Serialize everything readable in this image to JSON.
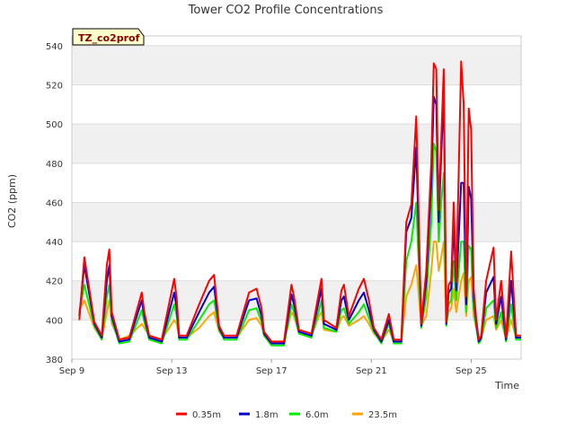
{
  "chart_data": {
    "type": "line",
    "title": "Tower CO2 Profile Concentrations",
    "xlabel": "Time",
    "ylabel": "CO2 (ppm)",
    "badge": "TZ_co2prof",
    "xlim": [
      9.0,
      27.0
    ],
    "ylim": [
      380,
      545
    ],
    "x_ticks": [
      {
        "value": 9,
        "label": "Sep 9"
      },
      {
        "value": 13,
        "label": "Sep 13"
      },
      {
        "value": 17,
        "label": "Sep 17"
      },
      {
        "value": 21,
        "label": "Sep 21"
      },
      {
        "value": 25,
        "label": "Sep 25"
      }
    ],
    "y_ticks": [
      380,
      400,
      420,
      440,
      460,
      480,
      500,
      520,
      540
    ],
    "grid": true,
    "legend_position": "bottom",
    "colors": {
      "0.35m": "#ff0000",
      "1.8m": "#0000cc",
      "6.0m": "#00ee00",
      "23.5m": "#ffa500",
      "band": "#f0f0f0",
      "grid": "#dddddd"
    },
    "series": [
      {
        "name": "0.35m",
        "color": "#ff0000",
        "x": [
          9.3,
          9.5,
          9.9,
          10.2,
          10.4,
          10.5,
          10.6,
          10.9,
          11.3,
          11.8,
          11.9,
          12.1,
          12.6,
          13.1,
          13.2,
          13.3,
          13.6,
          14.1,
          14.5,
          14.7,
          14.9,
          15.1,
          15.6,
          16.1,
          16.4,
          16.6,
          16.7,
          17.0,
          17.5,
          17.8,
          17.9,
          18.1,
          18.6,
          18.9,
          19.0,
          19.1,
          19.6,
          19.8,
          19.9,
          20.1,
          20.5,
          20.7,
          20.9,
          21.1,
          21.4,
          21.7,
          21.9,
          22.2,
          22.4,
          22.6,
          22.8,
          23.0,
          23.2,
          23.4,
          23.5,
          23.6,
          23.7,
          23.8,
          23.9,
          24.0,
          24.1,
          24.2,
          24.3,
          24.4,
          24.6,
          24.7,
          24.8,
          24.9,
          25.0,
          25.1,
          25.2,
          25.3,
          25.4,
          25.6,
          25.9,
          26.0,
          26.2,
          26.4,
          26.6,
          26.8,
          27.0
        ],
        "values": [
          400,
          432,
          399,
          392,
          428,
          436,
          404,
          390,
          391,
          414,
          404,
          392,
          390,
          421,
          411,
          392,
          392,
          408,
          420,
          423,
          397,
          392,
          392,
          414,
          416,
          406,
          394,
          389,
          389,
          418,
          412,
          395,
          393,
          414,
          421,
          400,
          396,
          415,
          418,
          402,
          416,
          421,
          410,
          396,
          390,
          403,
          390,
          390,
          450,
          459,
          504,
          398,
          425,
          480,
          531,
          528,
          456,
          492,
          528,
          399,
          418,
          420,
          460,
          419,
          532,
          510,
          412,
          508,
          497,
          416,
          401,
          390,
          392,
          420,
          437,
          400,
          420,
          391,
          435,
          392,
          392
        ]
      },
      {
        "name": "1.8m",
        "color": "#0000cc",
        "x": [
          9.3,
          9.5,
          9.9,
          10.2,
          10.4,
          10.5,
          10.6,
          10.9,
          11.3,
          11.8,
          11.9,
          12.1,
          12.6,
          13.1,
          13.2,
          13.3,
          13.6,
          14.1,
          14.5,
          14.7,
          14.9,
          15.1,
          15.6,
          16.1,
          16.4,
          16.6,
          16.7,
          17.0,
          17.5,
          17.8,
          17.9,
          18.1,
          18.6,
          18.9,
          19.0,
          19.1,
          19.6,
          19.8,
          19.9,
          20.1,
          20.5,
          20.7,
          20.9,
          21.1,
          21.4,
          21.7,
          21.9,
          22.2,
          22.4,
          22.6,
          22.8,
          23.0,
          23.2,
          23.4,
          23.5,
          23.6,
          23.7,
          23.8,
          23.9,
          24.0,
          24.1,
          24.2,
          24.3,
          24.4,
          24.6,
          24.7,
          24.8,
          24.9,
          25.0,
          25.1,
          25.2,
          25.3,
          25.4,
          25.6,
          25.9,
          26.0,
          26.2,
          26.4,
          26.6,
          26.8,
          27.0
        ],
        "values": [
          402,
          428,
          398,
          391,
          420,
          428,
          402,
          389,
          390,
          410,
          402,
          391,
          389,
          414,
          406,
          391,
          391,
          404,
          414,
          417,
          396,
          391,
          391,
          410,
          411,
          402,
          393,
          388,
          388,
          413,
          408,
          394,
          392,
          410,
          416,
          398,
          395,
          410,
          412,
          400,
          410,
          414,
          405,
          395,
          389,
          400,
          389,
          389,
          445,
          452,
          488,
          397,
          420,
          470,
          514,
          510,
          450,
          484,
          516,
          398,
          414,
          416,
          450,
          415,
          470,
          470,
          408,
          468,
          462,
          412,
          399,
          389,
          391,
          414,
          422,
          398,
          412,
          390,
          420,
          391,
          391
        ]
      },
      {
        "name": "6.0m",
        "color": "#00ee00",
        "x": [
          9.3,
          9.5,
          9.9,
          10.2,
          10.4,
          10.5,
          10.6,
          10.9,
          11.3,
          11.8,
          11.9,
          12.1,
          12.6,
          13.1,
          13.2,
          13.3,
          13.6,
          14.1,
          14.5,
          14.7,
          14.9,
          15.1,
          15.6,
          16.1,
          16.4,
          16.6,
          16.7,
          17.0,
          17.5,
          17.8,
          17.9,
          18.1,
          18.6,
          18.9,
          19.0,
          19.1,
          19.6,
          19.8,
          19.9,
          20.1,
          20.5,
          20.7,
          20.9,
          21.1,
          21.4,
          21.7,
          21.9,
          22.2,
          22.4,
          22.6,
          22.8,
          23.0,
          23.2,
          23.4,
          23.5,
          23.6,
          23.7,
          23.8,
          23.9,
          24.0,
          24.1,
          24.2,
          24.3,
          24.4,
          24.6,
          24.7,
          24.8,
          24.9,
          25.0,
          25.1,
          25.2,
          25.3,
          25.4,
          25.6,
          25.9,
          26.0,
          26.2,
          26.4,
          26.6,
          26.8,
          27.0
        ],
        "values": [
          404,
          418,
          397,
          390,
          412,
          418,
          400,
          388,
          389,
          405,
          399,
          390,
          388,
          408,
          402,
          390,
          390,
          400,
          408,
          410,
          395,
          390,
          390,
          405,
          406,
          399,
          392,
          387,
          387,
          408,
          404,
          393,
          391,
          405,
          410,
          396,
          394,
          405,
          406,
          398,
          404,
          408,
          401,
          394,
          388,
          398,
          388,
          388,
          430,
          440,
          460,
          396,
          412,
          450,
          490,
          486,
          440,
          460,
          475,
          397,
          408,
          410,
          430,
          410,
          440,
          440,
          404,
          438,
          436,
          406,
          397,
          388,
          390,
          406,
          410,
          396,
          404,
          389,
          408,
          390,
          390
        ]
      },
      {
        "name": "23.5m",
        "color": "#ffa500",
        "x": [
          9.3,
          9.5,
          9.9,
          10.2,
          10.4,
          10.5,
          10.6,
          10.9,
          11.3,
          11.8,
          11.9,
          12.1,
          12.6,
          13.1,
          13.2,
          13.3,
          13.6,
          14.1,
          14.5,
          14.7,
          14.9,
          15.1,
          15.6,
          16.1,
          16.4,
          16.6,
          16.7,
          17.0,
          17.5,
          17.8,
          17.9,
          18.1,
          18.6,
          18.9,
          19.0,
          19.1,
          19.6,
          19.8,
          19.9,
          20.1,
          20.5,
          20.7,
          20.9,
          21.1,
          21.4,
          21.7,
          21.9,
          22.2,
          22.4,
          22.6,
          22.8,
          23.0,
          23.2,
          23.4,
          23.5,
          23.6,
          23.7,
          23.8,
          23.9,
          24.0,
          24.1,
          24.2,
          24.3,
          24.4,
          24.6,
          24.7,
          24.8,
          24.9,
          25.0,
          25.1,
          25.2,
          25.3,
          25.4,
          25.6,
          25.9,
          26.0,
          26.2,
          26.4,
          26.6,
          26.8,
          27.0
        ],
        "values": [
          405,
          410,
          396,
          390,
          404,
          410,
          398,
          390,
          392,
          398,
          396,
          392,
          390,
          400,
          398,
          391,
          391,
          396,
          402,
          404,
          394,
          391,
          391,
          400,
          401,
          397,
          392,
          389,
          389,
          404,
          402,
          393,
          392,
          402,
          404,
          395,
          394,
          401,
          402,
          397,
          400,
          402,
          398,
          393,
          389,
          395,
          389,
          389,
          412,
          418,
          428,
          397,
          402,
          425,
          440,
          440,
          425,
          432,
          440,
          398,
          404,
          406,
          416,
          404,
          420,
          424,
          402,
          420,
          422,
          402,
          396,
          390,
          391,
          400,
          402,
          395,
          400,
          390,
          400,
          391,
          391
        ]
      }
    ]
  }
}
